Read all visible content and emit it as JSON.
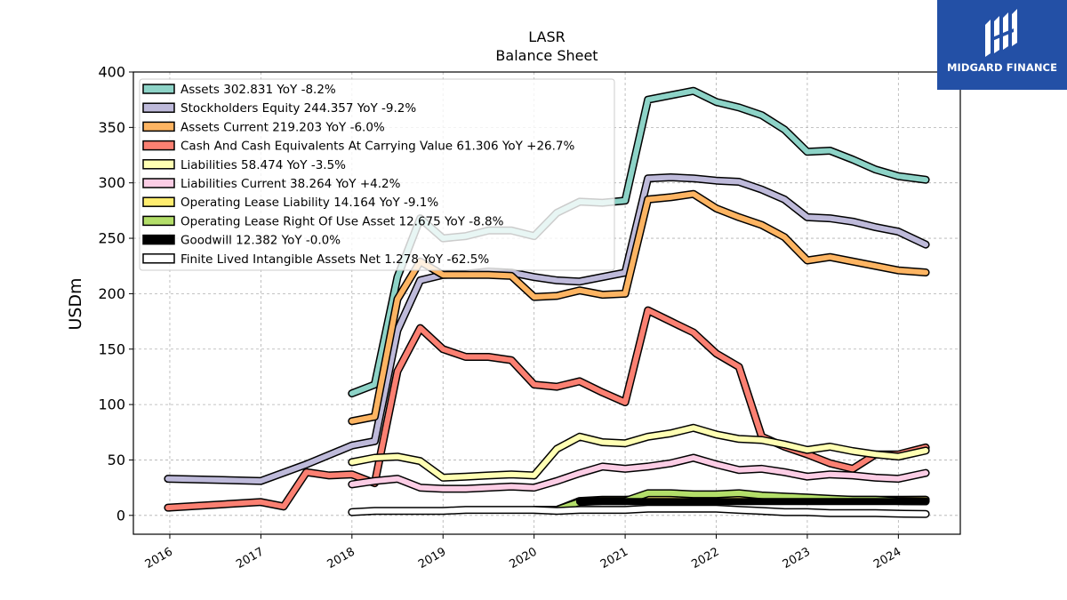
{
  "chart_data": {
    "type": "line",
    "title": "LASR",
    "subtitle": "Balance  Sheet",
    "ylabel": "USDm",
    "xlabel": "",
    "ylim": [
      -17,
      400
    ],
    "xlim": [
      2015.6,
      2024.68
    ],
    "yticks": [
      0,
      50,
      100,
      150,
      200,
      250,
      300,
      350,
      400
    ],
    "xticks": [
      "2016",
      "2017",
      "2018",
      "2019",
      "2020",
      "2021",
      "2022",
      "2023",
      "2024"
    ],
    "grid": true,
    "legend_position": "upper-left",
    "series": [
      {
        "name": "Assets",
        "legend_label": "Assets  302.831 YoY -8.2%",
        "color": "#8dd3c7",
        "points": [
          [
            2018.0,
            110
          ],
          [
            2018.25,
            118
          ],
          [
            2018.5,
            215
          ],
          [
            2018.75,
            268
          ],
          [
            2019.0,
            250
          ],
          [
            2019.25,
            252
          ],
          [
            2019.5,
            257
          ],
          [
            2019.75,
            257
          ],
          [
            2020.0,
            252
          ],
          [
            2020.25,
            273
          ],
          [
            2020.5,
            283
          ],
          [
            2020.75,
            282
          ],
          [
            2021.0,
            284
          ],
          [
            2021.25,
            375
          ],
          [
            2021.5,
            379
          ],
          [
            2021.75,
            383
          ],
          [
            2022.0,
            373
          ],
          [
            2022.25,
            368
          ],
          [
            2022.5,
            361
          ],
          [
            2022.75,
            348
          ],
          [
            2023.0,
            328
          ],
          [
            2023.25,
            329
          ],
          [
            2023.5,
            321
          ],
          [
            2023.75,
            312
          ],
          [
            2024.0,
            306
          ],
          [
            2024.3,
            302.831
          ]
        ]
      },
      {
        "name": "Stockholders Equity",
        "legend_label": "Stockholders Equity  244.357 YoY -9.2%",
        "color": "#bebada",
        "points": [
          [
            2015.98,
            33
          ],
          [
            2017.0,
            31
          ],
          [
            2017.5,
            46
          ],
          [
            2018.0,
            63
          ],
          [
            2018.25,
            67
          ],
          [
            2018.5,
            167
          ],
          [
            2018.75,
            212
          ],
          [
            2019.0,
            217
          ],
          [
            2019.25,
            218
          ],
          [
            2019.5,
            220
          ],
          [
            2019.75,
            219
          ],
          [
            2020.0,
            215
          ],
          [
            2020.25,
            212
          ],
          [
            2020.5,
            211
          ],
          [
            2020.75,
            215
          ],
          [
            2021.0,
            219
          ],
          [
            2021.25,
            304
          ],
          [
            2021.5,
            305
          ],
          [
            2021.75,
            304
          ],
          [
            2022.0,
            302
          ],
          [
            2022.25,
            301
          ],
          [
            2022.5,
            294
          ],
          [
            2022.75,
            285
          ],
          [
            2023.0,
            269
          ],
          [
            2023.25,
            268
          ],
          [
            2023.5,
            265
          ],
          [
            2023.75,
            260
          ],
          [
            2024.0,
            256
          ],
          [
            2024.3,
            244.357
          ]
        ]
      },
      {
        "name": "Assets Current",
        "legend_label": "Assets Current  219.203 YoY -6.0%",
        "color": "#fdb462",
        "points": [
          [
            2018.0,
            85
          ],
          [
            2018.25,
            89
          ],
          [
            2018.5,
            195
          ],
          [
            2018.75,
            229
          ],
          [
            2019.0,
            217
          ],
          [
            2019.25,
            217
          ],
          [
            2019.5,
            217
          ],
          [
            2019.75,
            216
          ],
          [
            2020.0,
            197
          ],
          [
            2020.25,
            198
          ],
          [
            2020.5,
            203
          ],
          [
            2020.75,
            199
          ],
          [
            2021.0,
            200
          ],
          [
            2021.25,
            285
          ],
          [
            2021.5,
            287
          ],
          [
            2021.75,
            290
          ],
          [
            2022.0,
            277
          ],
          [
            2022.25,
            269
          ],
          [
            2022.5,
            262
          ],
          [
            2022.75,
            251
          ],
          [
            2023.0,
            230
          ],
          [
            2023.25,
            233
          ],
          [
            2023.5,
            229
          ],
          [
            2023.75,
            225
          ],
          [
            2024.0,
            221
          ],
          [
            2024.3,
            219.203
          ]
        ]
      },
      {
        "name": "Cash And Cash Equivalents At Carrying Value",
        "legend_label": "Cash And Cash Equivalents At Carrying Value  61.306 YoY +26.7%",
        "color": "#fb8072",
        "points": [
          [
            2015.98,
            7
          ],
          [
            2017.0,
            12
          ],
          [
            2017.25,
            8
          ],
          [
            2017.5,
            39
          ],
          [
            2017.75,
            36
          ],
          [
            2018.0,
            37
          ],
          [
            2018.25,
            29
          ],
          [
            2018.5,
            130
          ],
          [
            2018.75,
            169
          ],
          [
            2019.0,
            150
          ],
          [
            2019.25,
            143
          ],
          [
            2019.5,
            143
          ],
          [
            2019.75,
            140
          ],
          [
            2020.0,
            118
          ],
          [
            2020.25,
            116
          ],
          [
            2020.5,
            121
          ],
          [
            2020.75,
            111
          ],
          [
            2021.0,
            102
          ],
          [
            2021.25,
            185
          ],
          [
            2021.5,
            175
          ],
          [
            2021.75,
            165
          ],
          [
            2022.0,
            146
          ],
          [
            2022.25,
            134
          ],
          [
            2022.5,
            71
          ],
          [
            2022.75,
            62
          ],
          [
            2023.0,
            55
          ],
          [
            2023.25,
            47
          ],
          [
            2023.5,
            42
          ],
          [
            2023.75,
            55
          ],
          [
            2024.0,
            55
          ],
          [
            2024.3,
            61.306
          ]
        ]
      },
      {
        "name": "Liabilities",
        "legend_label": "Liabilities  58.474 YoY -3.5%",
        "color": "#ffffb3",
        "points": [
          [
            2018.0,
            48
          ],
          [
            2018.25,
            52
          ],
          [
            2018.5,
            53
          ],
          [
            2018.75,
            49
          ],
          [
            2019.0,
            34
          ],
          [
            2019.25,
            35
          ],
          [
            2019.5,
            36
          ],
          [
            2019.75,
            37
          ],
          [
            2020.0,
            36
          ],
          [
            2020.25,
            60
          ],
          [
            2020.5,
            71
          ],
          [
            2020.75,
            66
          ],
          [
            2021.0,
            65
          ],
          [
            2021.25,
            71
          ],
          [
            2021.5,
            74
          ],
          [
            2021.75,
            79
          ],
          [
            2022.0,
            73
          ],
          [
            2022.25,
            69
          ],
          [
            2022.5,
            68
          ],
          [
            2022.75,
            64
          ],
          [
            2023.0,
            59
          ],
          [
            2023.25,
            62
          ],
          [
            2023.5,
            58
          ],
          [
            2023.75,
            55
          ],
          [
            2024.0,
            53
          ],
          [
            2024.3,
            58.474
          ]
        ]
      },
      {
        "name": "Liabilities Current",
        "legend_label": "Liabilities Current  38.264 YoY +4.2%",
        "color": "#fccde5",
        "points": [
          [
            2018.0,
            28
          ],
          [
            2018.25,
            31
          ],
          [
            2018.5,
            33
          ],
          [
            2018.75,
            25
          ],
          [
            2019.0,
            24
          ],
          [
            2019.25,
            24
          ],
          [
            2019.5,
            25
          ],
          [
            2019.75,
            26
          ],
          [
            2020.0,
            25
          ],
          [
            2020.25,
            31
          ],
          [
            2020.5,
            38
          ],
          [
            2020.75,
            44
          ],
          [
            2021.0,
            42
          ],
          [
            2021.25,
            44
          ],
          [
            2021.5,
            47
          ],
          [
            2021.75,
            52
          ],
          [
            2022.0,
            46
          ],
          [
            2022.25,
            41
          ],
          [
            2022.5,
            42
          ],
          [
            2022.75,
            39
          ],
          [
            2023.0,
            35
          ],
          [
            2023.25,
            37
          ],
          [
            2023.5,
            36
          ],
          [
            2023.75,
            34
          ],
          [
            2024.0,
            33
          ],
          [
            2024.3,
            38.264
          ]
        ]
      },
      {
        "name": "Operating Lease Liability",
        "legend_label": "Operating Lease Liability  14.164 YoY -9.1%",
        "color": "#ffed6f",
        "points": [
          [
            2020.0,
            5
          ],
          [
            2020.25,
            5
          ],
          [
            2020.5,
            13
          ],
          [
            2020.75,
            14
          ],
          [
            2021.0,
            14
          ],
          [
            2021.25,
            15
          ],
          [
            2021.5,
            14
          ],
          [
            2021.75,
            14
          ],
          [
            2022.0,
            14
          ],
          [
            2022.25,
            16
          ],
          [
            2022.5,
            15
          ],
          [
            2022.75,
            15
          ],
          [
            2023.0,
            14
          ],
          [
            2023.25,
            14
          ],
          [
            2023.5,
            14
          ],
          [
            2023.75,
            14
          ],
          [
            2024.0,
            14
          ],
          [
            2024.3,
            14.164
          ]
        ]
      },
      {
        "name": "Operating Lease Right Of Use Asset",
        "legend_label": "Operating Lease Right Of Use Asset  12.675 YoY -8.8%",
        "color": "#b3de69",
        "points": [
          [
            2020.0,
            5
          ],
          [
            2020.25,
            5
          ],
          [
            2020.5,
            12
          ],
          [
            2020.75,
            13
          ],
          [
            2021.0,
            13
          ],
          [
            2021.25,
            20
          ],
          [
            2021.5,
            20
          ],
          [
            2021.75,
            19
          ],
          [
            2022.0,
            19
          ],
          [
            2022.25,
            20
          ],
          [
            2022.5,
            18
          ],
          [
            2022.75,
            17
          ],
          [
            2023.0,
            16
          ],
          [
            2023.25,
            15
          ],
          [
            2023.5,
            14
          ],
          [
            2023.75,
            14
          ],
          [
            2024.0,
            13
          ],
          [
            2024.3,
            12.675
          ]
        ]
      },
      {
        "name": "Goodwill",
        "legend_label": "Goodwill  12.382 YoY -0.0%",
        "color": "#000000",
        "points": [
          [
            2020.5,
            12.4
          ],
          [
            2020.75,
            12.4
          ],
          [
            2021.0,
            12.4
          ],
          [
            2021.25,
            12.4
          ],
          [
            2021.5,
            12.4
          ],
          [
            2021.75,
            12.4
          ],
          [
            2022.0,
            12.4
          ],
          [
            2022.25,
            12.4
          ],
          [
            2022.5,
            12.4
          ],
          [
            2022.75,
            12.4
          ],
          [
            2023.0,
            12.4
          ],
          [
            2023.25,
            12.4
          ],
          [
            2023.5,
            12.4
          ],
          [
            2023.75,
            12.4
          ],
          [
            2024.0,
            12.4
          ],
          [
            2024.3,
            12.382
          ]
        ]
      },
      {
        "name": "Finite Lived Intangible Assets Net",
        "legend_label": "Finite Lived Intangible Assets Net  1.278 YoY -62.5%",
        "color": "#ffffff",
        "points": [
          [
            2018.0,
            3
          ],
          [
            2018.25,
            4
          ],
          [
            2018.5,
            4
          ],
          [
            2018.75,
            4
          ],
          [
            2019.0,
            4
          ],
          [
            2019.25,
            5
          ],
          [
            2019.5,
            5
          ],
          [
            2019.75,
            5
          ],
          [
            2020.0,
            5
          ],
          [
            2020.25,
            4
          ],
          [
            2020.5,
            5
          ],
          [
            2020.75,
            5
          ],
          [
            2021.0,
            5
          ],
          [
            2021.25,
            6
          ],
          [
            2021.5,
            6
          ],
          [
            2021.75,
            6
          ],
          [
            2022.0,
            6
          ],
          [
            2022.25,
            5
          ],
          [
            2022.5,
            4
          ],
          [
            2022.75,
            3
          ],
          [
            2023.0,
            3
          ],
          [
            2023.25,
            2
          ],
          [
            2023.5,
            2
          ],
          [
            2023.75,
            2
          ],
          [
            2024.0,
            1.5
          ],
          [
            2024.3,
            1.278
          ]
        ]
      }
    ]
  },
  "logo": {
    "text": "MIDGARD FINANCE",
    "background": "#2350a6"
  }
}
